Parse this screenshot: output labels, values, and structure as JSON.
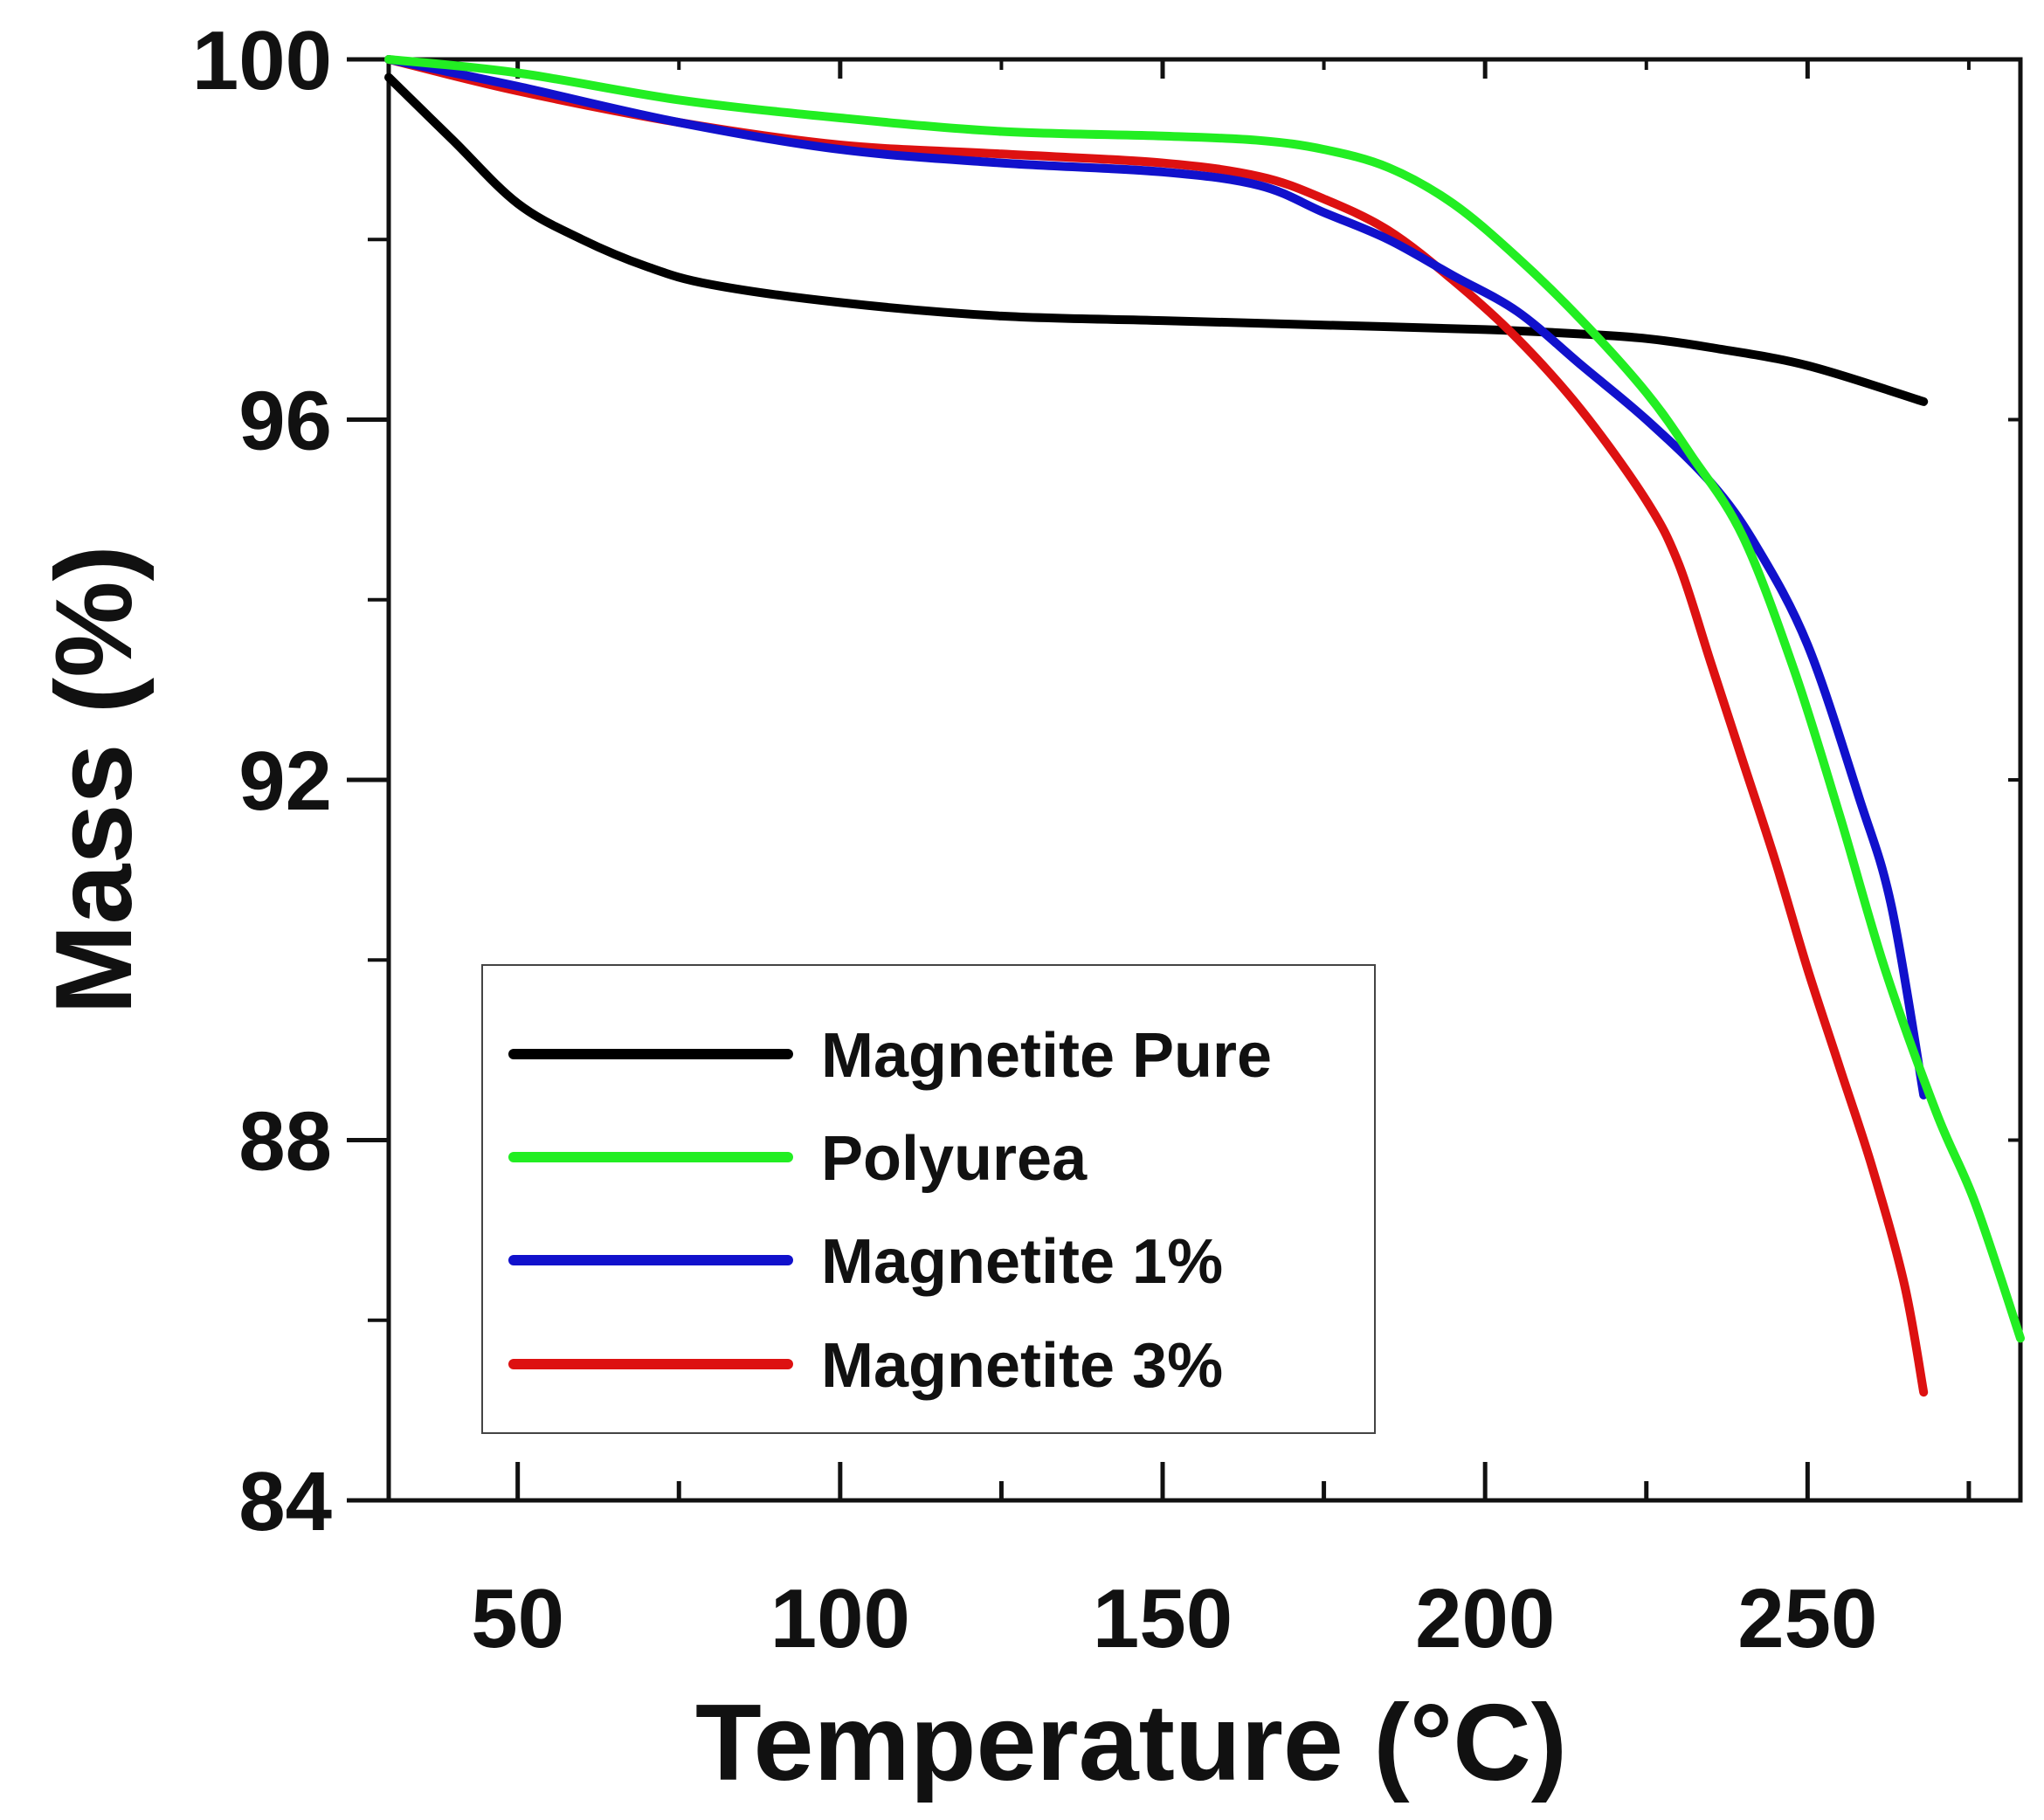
{
  "chart_data": {
    "type": "line",
    "title": "",
    "xlabel": "Temperature (°C)",
    "ylabel": "Mass (%)",
    "xlim": [
      30,
      283
    ],
    "ylim": [
      84,
      100
    ],
    "xticks": [
      50,
      100,
      150,
      200,
      250
    ],
    "xminor": [
      75,
      125,
      175,
      225,
      275
    ],
    "yticks": [
      84,
      88,
      92,
      96,
      100
    ],
    "yminor": [
      86,
      90,
      94,
      98
    ],
    "legend_position": "bottom-left",
    "grid": false,
    "series": [
      {
        "name": "Magnetite Pure",
        "color": "#000000",
        "points": [
          [
            30,
            99.8
          ],
          [
            40,
            99.1
          ],
          [
            50,
            98.4
          ],
          [
            60,
            98.0
          ],
          [
            70,
            97.7
          ],
          [
            80,
            97.5
          ],
          [
            100,
            97.3
          ],
          [
            125,
            97.15
          ],
          [
            150,
            97.1
          ],
          [
            175,
            97.05
          ],
          [
            200,
            97.0
          ],
          [
            215,
            96.95
          ],
          [
            225,
            96.9
          ],
          [
            235,
            96.8
          ],
          [
            250,
            96.6
          ],
          [
            268,
            96.2
          ]
        ]
      },
      {
        "name": "Polyurea",
        "color": "#22ee22",
        "points": [
          [
            30,
            100.0
          ],
          [
            50,
            99.85
          ],
          [
            75,
            99.55
          ],
          [
            100,
            99.35
          ],
          [
            125,
            99.2
          ],
          [
            150,
            99.15
          ],
          [
            165,
            99.1
          ],
          [
            175,
            99.0
          ],
          [
            185,
            98.8
          ],
          [
            195,
            98.4
          ],
          [
            205,
            97.8
          ],
          [
            215,
            97.1
          ],
          [
            225,
            96.3
          ],
          [
            232,
            95.6
          ],
          [
            240,
            94.7
          ],
          [
            248,
            93.2
          ],
          [
            255,
            91.6
          ],
          [
            262,
            89.9
          ],
          [
            270,
            88.3
          ],
          [
            276,
            87.3
          ],
          [
            283,
            85.8
          ]
        ]
      },
      {
        "name": "Magnetite 1%",
        "color": "#1111cc",
        "points": [
          [
            30,
            100.0
          ],
          [
            50,
            99.7
          ],
          [
            75,
            99.3
          ],
          [
            100,
            99.0
          ],
          [
            125,
            98.85
          ],
          [
            150,
            98.75
          ],
          [
            165,
            98.6
          ],
          [
            175,
            98.3
          ],
          [
            185,
            98.0
          ],
          [
            195,
            97.6
          ],
          [
            205,
            97.2
          ],
          [
            215,
            96.6
          ],
          [
            225,
            96.0
          ],
          [
            235,
            95.3
          ],
          [
            242,
            94.6
          ],
          [
            250,
            93.5
          ],
          [
            258,
            91.8
          ],
          [
            263,
            90.6
          ],
          [
            268,
            88.5
          ]
        ]
      },
      {
        "name": "Magnetite 3%",
        "color": "#dd1111",
        "points": [
          [
            30,
            100.0
          ],
          [
            50,
            99.65
          ],
          [
            75,
            99.3
          ],
          [
            100,
            99.05
          ],
          [
            125,
            98.95
          ],
          [
            150,
            98.85
          ],
          [
            165,
            98.7
          ],
          [
            175,
            98.45
          ],
          [
            185,
            98.1
          ],
          [
            195,
            97.55
          ],
          [
            205,
            96.9
          ],
          [
            215,
            96.1
          ],
          [
            225,
            95.1
          ],
          [
            230,
            94.4
          ],
          [
            235,
            93.3
          ],
          [
            240,
            92.2
          ],
          [
            245,
            91.1
          ],
          [
            250,
            89.9
          ],
          [
            255,
            88.8
          ],
          [
            260,
            87.7
          ],
          [
            265,
            86.4
          ],
          [
            268,
            85.2
          ]
        ]
      }
    ]
  }
}
